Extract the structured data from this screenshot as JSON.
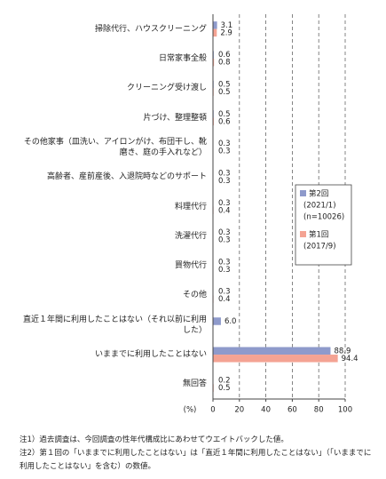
{
  "chart_data": {
    "type": "bar",
    "orientation": "horizontal",
    "categories": [
      "掃除代行、ハウスクリーニング",
      "日常家事全般",
      "クリーニング受け渡し",
      "片づけ、整理整頓",
      "その他家事（皿洗い、アイロンがけ、布団干し、靴磨き、庭の手入れなど）",
      "高齢者、産前産後、入退院時などのサポート",
      "料理代行",
      "洗濯代行",
      "買物代行",
      "その他",
      "直近１年間に利用したことはない（それ以前に利用した）",
      "いままでに利用したことはない",
      "無回答"
    ],
    "series": [
      {
        "name": "第2回",
        "detail": [
          "(2021/1)",
          "(n=10026)"
        ],
        "color": "#8e9acb",
        "values": [
          3.1,
          0.6,
          0.5,
          0.5,
          0.3,
          0.3,
          0.3,
          0.3,
          0.3,
          0.3,
          6.0,
          88.9,
          0.2
        ],
        "value_labels": [
          "3.1",
          "0.6",
          "0.5",
          "0.5",
          "0.3",
          "0.3",
          "0.3",
          "0.3",
          "0.3",
          "0.3",
          "6.0",
          "88.9",
          "0.2"
        ]
      },
      {
        "name": "第1回",
        "detail": [
          "(2017/9)"
        ],
        "color": "#f4a393",
        "values": [
          2.9,
          0.8,
          0.5,
          0.6,
          0.3,
          0.3,
          0.4,
          0.3,
          0.3,
          0.4,
          null,
          94.4,
          0.5
        ]
      }
    ],
    "xlim": [
      0,
      100
    ],
    "xticks": [
      0,
      20,
      40,
      60,
      80,
      100
    ],
    "x_unit": "(%)",
    "grid": true,
    "notes": [
      "注1）過去調査は、今回調査の性年代構成比にあわせてウエイトバックした値。",
      "注2）第１回の「いままでに利用したことはない」は「直近１年間に利用したことはない」（「いままでに利用したことはない」を含む）の数値。"
    ]
  }
}
